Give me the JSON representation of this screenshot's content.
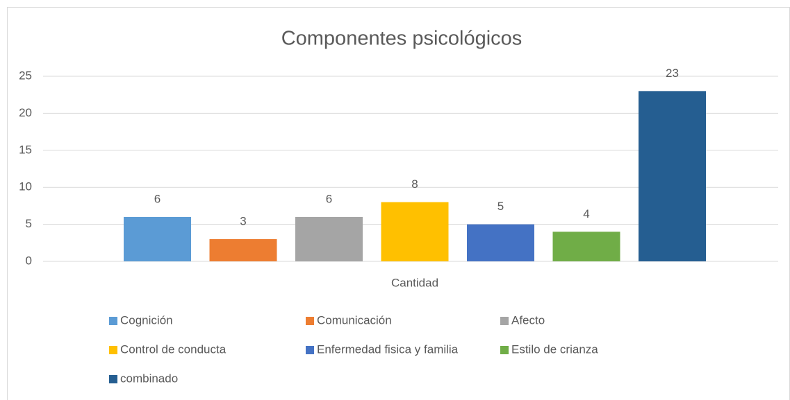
{
  "chart_data": {
    "type": "bar",
    "title": "Componentes psicológicos",
    "categories": [
      "Cantidad"
    ],
    "series": [
      {
        "name": "Cognición",
        "color": "#5b9bd5",
        "values": [
          6
        ]
      },
      {
        "name": "Comunicación",
        "color": "#ed7d31",
        "values": [
          3
        ]
      },
      {
        "name": "Afecto",
        "color": "#a5a5a5",
        "values": [
          6
        ]
      },
      {
        "name": "Control de conducta",
        "color": "#ffc000",
        "values": [
          8
        ]
      },
      {
        "name": "Enfermedad fisica y familia",
        "color": "#4472c4",
        "values": [
          5
        ]
      },
      {
        "name": "Estilo de crianza",
        "color": "#70ad47",
        "values": [
          4
        ]
      },
      {
        "name": "combinado",
        "color": "#255e91",
        "values": [
          23
        ]
      }
    ],
    "ylim": [
      0,
      25
    ],
    "yticks": [
      0,
      5,
      10,
      15,
      20,
      25
    ],
    "grid": true,
    "legend": "bottom"
  }
}
